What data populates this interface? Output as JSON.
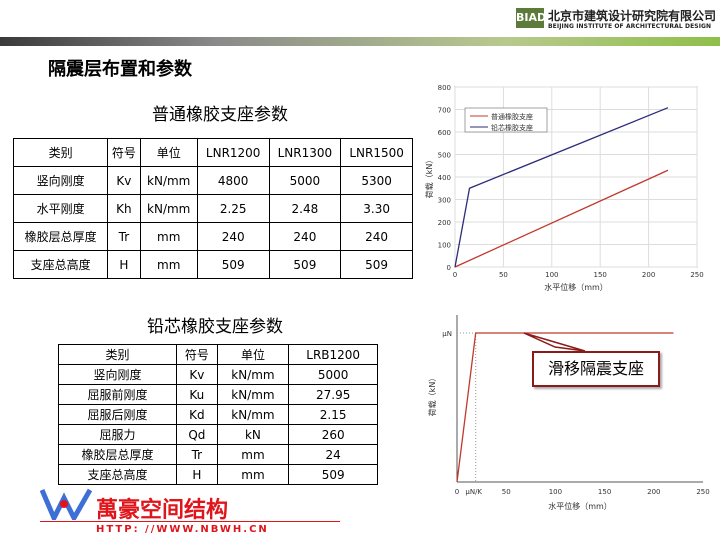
{
  "header": {
    "logo_abbr": "BIAD",
    "org_cn": "北京市建筑设计研究院有限公司",
    "org_en": "BEIJING INSTITUTE OF ARCHITECTURAL DESIGN"
  },
  "page_title": "隔震层布置和参数",
  "table1": {
    "title": "普通橡胶支座参数",
    "headers": [
      "类别",
      "符号",
      "单位",
      "LNR1200",
      "LNR1300",
      "LNR1500"
    ],
    "rows": [
      [
        "竖向刚度",
        "Kv",
        "kN/mm",
        "4800",
        "5000",
        "5300"
      ],
      [
        "水平刚度",
        "Kh",
        "kN/mm",
        "2.25",
        "2.48",
        "3.30"
      ],
      [
        "橡胶层总厚度",
        "Tr",
        "mm",
        "240",
        "240",
        "240"
      ],
      [
        "支座总高度",
        "H",
        "mm",
        "509",
        "509",
        "509"
      ]
    ]
  },
  "table2": {
    "title": "铅芯橡胶支座参数",
    "headers": [
      "类别",
      "符号",
      "单位",
      "LRB1200"
    ],
    "rows": [
      [
        "竖向刚度",
        "Kv",
        "kN/mm",
        "5000"
      ],
      [
        "屈服前刚度",
        "Ku",
        "kN/mm",
        "27.95"
      ],
      [
        "屈服后刚度",
        "Kd",
        "kN/mm",
        "2.15"
      ],
      [
        "屈服力",
        "Qd",
        "kN",
        "260"
      ],
      [
        "橡胶层总厚度",
        "Tr",
        "mm",
        "24"
      ],
      [
        "支座总高度",
        "H",
        "mm",
        "509"
      ]
    ]
  },
  "watermark": {
    "text": "萬豪空间结构",
    "url": "HTTP: //WWW.NBWH.CN"
  },
  "callout": "滑移隔震支座",
  "chart_data": [
    {
      "type": "line",
      "xlabel": "水平位移（mm）",
      "ylabel": "荷载（kN）",
      "xlim": [
        0,
        250
      ],
      "ylim": [
        0,
        800
      ],
      "xticks": [
        0,
        50,
        100,
        150,
        200,
        250
      ],
      "yticks": [
        0,
        100,
        200,
        300,
        400,
        500,
        600,
        700,
        800
      ],
      "grid": true,
      "legend": "top-left",
      "series": [
        {
          "name": "普通橡胶支座",
          "color": "#c0392b",
          "x": [
            0,
            220
          ],
          "y": [
            0,
            430
          ]
        },
        {
          "name": "铅芯橡胶支座",
          "color": "#2c2c7a",
          "x": [
            0,
            15,
            220
          ],
          "y": [
            0,
            350,
            708
          ]
        }
      ]
    },
    {
      "type": "line",
      "xlabel": "水平位移（mm）",
      "ylabel": "荷载（kN）",
      "xlim": [
        0,
        250
      ],
      "xticks": [
        "0",
        "μN/K",
        "50",
        "100",
        "150",
        "200",
        "250"
      ],
      "yticks": [
        "μN"
      ],
      "grid": false,
      "series": [
        {
          "color": "#c0392b",
          "x": [
            "0",
            "μN/K",
            "220"
          ],
          "y": [
            "0",
            "μN",
            "μN"
          ]
        }
      ]
    }
  ]
}
